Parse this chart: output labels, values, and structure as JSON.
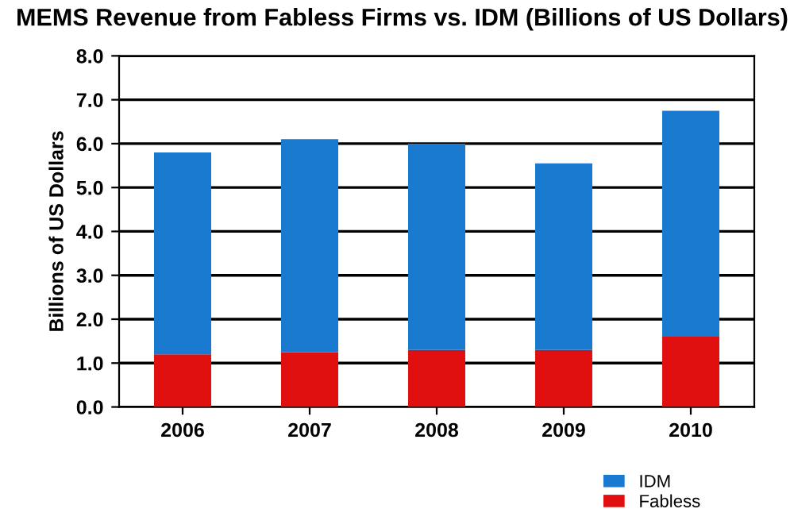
{
  "chart_data": {
    "type": "bar",
    "title": "MEMS Revenue from Fabless Firms vs. IDM (Billions of US Dollars)",
    "ylabel": "Billions of US Dollars",
    "categories": [
      "2006",
      "2007",
      "2008",
      "2009",
      "2010"
    ],
    "stacked": true,
    "series": [
      {
        "name": "Fabless",
        "color": "#e01010",
        "values": [
          1.2,
          1.25,
          1.3,
          1.3,
          1.6
        ]
      },
      {
        "name": "IDM",
        "color": "#1a7ad0",
        "values": [
          4.6,
          4.85,
          4.7,
          4.25,
          5.15
        ]
      }
    ],
    "ylim": [
      0,
      8
    ],
    "yticks": [
      {
        "value": 0,
        "label": "0.0"
      },
      {
        "value": 1,
        "label": "1.0"
      },
      {
        "value": 2,
        "label": "2.0"
      },
      {
        "value": 3,
        "label": "3.0"
      },
      {
        "value": 4,
        "label": "4.0"
      },
      {
        "value": 5,
        "label": "5.0"
      },
      {
        "value": 6,
        "label": "6.0"
      },
      {
        "value": 7,
        "label": "7.0"
      },
      {
        "value": 8,
        "label": "8.0"
      }
    ],
    "grid": "y",
    "legend": "bottom right"
  }
}
